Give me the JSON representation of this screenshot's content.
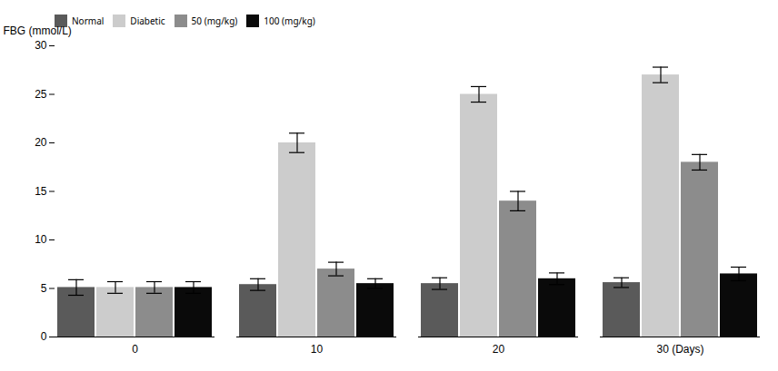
{
  "chart_data": {
    "type": "bar",
    "categories": [
      "0",
      "10",
      "20",
      "30 (Days)"
    ],
    "ylabel": "FBG (mmol/L)",
    "ylim": [
      0,
      30
    ],
    "yticks": [
      0,
      5,
      10,
      15,
      20,
      25,
      30
    ],
    "series": [
      {
        "name": "Normal",
        "color": "#5a5a5a",
        "values": [
          5.1,
          5.4,
          5.5,
          5.6
        ],
        "errors": [
          0.8,
          0.6,
          0.6,
          0.5
        ]
      },
      {
        "name": "Diabetic",
        "color": "#cccccc",
        "values": [
          5.1,
          20.0,
          25.0,
          27.0
        ],
        "errors": [
          0.6,
          1.0,
          0.8,
          0.8
        ]
      },
      {
        "name": "50 (mg/kg)",
        "color": "#8c8c8c",
        "values": [
          5.1,
          7.0,
          14.0,
          18.0
        ],
        "errors": [
          0.6,
          0.7,
          1.0,
          0.8
        ]
      },
      {
        "name": "100 (mg/kg)",
        "color": "#0a0a0a",
        "values": [
          5.1,
          5.5,
          6.0,
          6.5
        ],
        "errors": [
          0.6,
          0.5,
          0.6,
          0.7
        ]
      }
    ],
    "legend": "upper left",
    "grid": false
  }
}
